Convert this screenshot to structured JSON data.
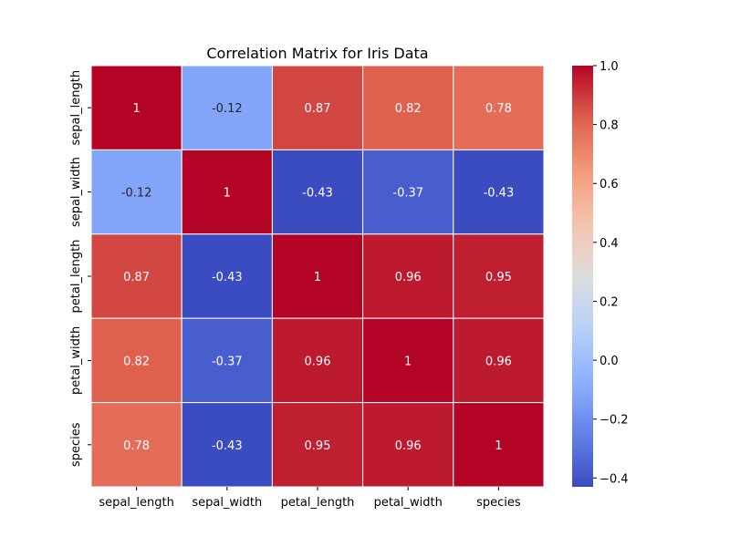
{
  "chart_data": {
    "type": "heatmap",
    "title": "Correlation Matrix for Iris Data",
    "xlabel": "",
    "ylabel": "",
    "x_categories": [
      "sepal_length",
      "sepal_width",
      "petal_length",
      "petal_width",
      "species"
    ],
    "y_categories": [
      "sepal_length",
      "sepal_width",
      "petal_length",
      "petal_width",
      "species"
    ],
    "values": [
      [
        1,
        -0.12,
        0.87,
        0.82,
        0.78
      ],
      [
        -0.12,
        1,
        -0.43,
        -0.37,
        -0.43
      ],
      [
        0.87,
        -0.43,
        1,
        0.96,
        0.95
      ],
      [
        0.82,
        -0.37,
        0.96,
        1,
        0.96
      ],
      [
        0.78,
        -0.43,
        0.95,
        0.96,
        1
      ]
    ],
    "cell_labels": [
      [
        "1",
        "-0.12",
        "0.87",
        "0.82",
        "0.78"
      ],
      [
        "-0.12",
        "1",
        "-0.43",
        "-0.37",
        "-0.43"
      ],
      [
        "0.87",
        "-0.43",
        "1",
        "0.96",
        "0.95"
      ],
      [
        "0.82",
        "-0.37",
        "0.96",
        "1",
        "0.96"
      ],
      [
        "0.78",
        "-0.43",
        "0.95",
        "0.96",
        "1"
      ]
    ],
    "colormap": "coolwarm",
    "colorbar": {
      "range": [
        -0.43,
        1.0
      ],
      "ticks": [
        -0.4,
        -0.2,
        0.0,
        0.2,
        0.4,
        0.6,
        0.8,
        1.0
      ],
      "tick_labels": [
        "−0.4",
        "−0.2",
        "0.0",
        "0.2",
        "0.4",
        "0.6",
        "0.8",
        "1.0"
      ]
    },
    "grid": false
  }
}
